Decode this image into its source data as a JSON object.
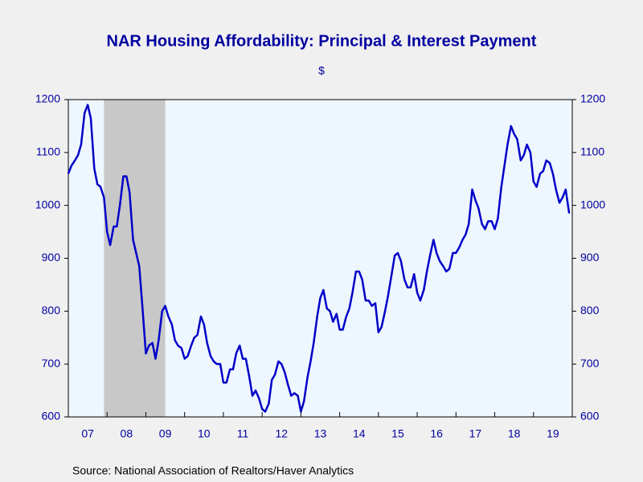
{
  "chart_data": {
    "type": "line",
    "title": "NAR Housing Affordability: Principal & Interest Payment",
    "subtitle": "$",
    "source": "Source:  National Association of Realtors/Haver Analytics",
    "x": [
      2007.0,
      2007.08,
      2007.17,
      2007.25,
      2007.33,
      2007.42,
      2007.5,
      2007.58,
      2007.67,
      2007.75,
      2007.83,
      2007.92,
      2008.0,
      2008.08,
      2008.17,
      2008.25,
      2008.33,
      2008.42,
      2008.5,
      2008.58,
      2008.67,
      2008.75,
      2008.83,
      2008.92,
      2009.0,
      2009.08,
      2009.17,
      2009.25,
      2009.33,
      2009.42,
      2009.5,
      2009.58,
      2009.67,
      2009.75,
      2009.83,
      2009.92,
      2010.0,
      2010.08,
      2010.17,
      2010.25,
      2010.33,
      2010.42,
      2010.5,
      2010.58,
      2010.67,
      2010.75,
      2010.83,
      2010.92,
      2011.0,
      2011.08,
      2011.17,
      2011.25,
      2011.33,
      2011.42,
      2011.5,
      2011.58,
      2011.67,
      2011.75,
      2011.83,
      2011.92,
      2012.0,
      2012.08,
      2012.17,
      2012.25,
      2012.33,
      2012.42,
      2012.5,
      2012.58,
      2012.67,
      2012.75,
      2012.83,
      2012.92,
      2013.0,
      2013.08,
      2013.17,
      2013.25,
      2013.33,
      2013.42,
      2013.5,
      2013.58,
      2013.67,
      2013.75,
      2013.83,
      2013.92,
      2014.0,
      2014.08,
      2014.17,
      2014.25,
      2014.33,
      2014.42,
      2014.5,
      2014.58,
      2014.67,
      2014.75,
      2014.83,
      2014.92,
      2015.0,
      2015.08,
      2015.17,
      2015.25,
      2015.33,
      2015.42,
      2015.5,
      2015.58,
      2015.67,
      2015.75,
      2015.83,
      2015.92,
      2016.0,
      2016.08,
      2016.17,
      2016.25,
      2016.33,
      2016.42,
      2016.5,
      2016.58,
      2016.67,
      2016.75,
      2016.83,
      2016.92,
      2017.0,
      2017.08,
      2017.17,
      2017.25,
      2017.33,
      2017.42,
      2017.5,
      2017.58,
      2017.67,
      2017.75,
      2017.83,
      2017.92,
      2018.0,
      2018.08,
      2018.17,
      2018.25,
      2018.33,
      2018.42,
      2018.5,
      2018.58,
      2018.67,
      2018.75,
      2018.83,
      2018.92,
      2019.0,
      2019.08,
      2019.17,
      2019.25,
      2019.33,
      2019.42,
      2019.5,
      2019.58,
      2019.67,
      2019.75,
      2019.83,
      2019.92
    ],
    "series": [
      {
        "name": "Principal & Interest Payment",
        "color": "#0000c8",
        "values": [
          1060,
          1075,
          1085,
          1095,
          1115,
          1175,
          1190,
          1165,
          1070,
          1040,
          1035,
          1015,
          950,
          925,
          960,
          960,
          1000,
          1055,
          1055,
          1025,
          935,
          910,
          885,
          800,
          720,
          735,
          740,
          710,
          745,
          800,
          810,
          790,
          775,
          745,
          735,
          730,
          710,
          715,
          735,
          750,
          755,
          790,
          775,
          740,
          715,
          705,
          700,
          700,
          665,
          665,
          690,
          690,
          720,
          735,
          710,
          710,
          675,
          640,
          650,
          635,
          615,
          610,
          625,
          670,
          680,
          705,
          700,
          685,
          660,
          640,
          645,
          640,
          610,
          630,
          675,
          705,
          740,
          790,
          825,
          840,
          805,
          800,
          780,
          795,
          765,
          765,
          790,
          805,
          835,
          875,
          875,
          860,
          820,
          820,
          810,
          815,
          760,
          770,
          800,
          830,
          865,
          905,
          910,
          895,
          860,
          845,
          845,
          870,
          835,
          820,
          840,
          875,
          905,
          935,
          910,
          895,
          885,
          875,
          880,
          910,
          910,
          920,
          935,
          945,
          965,
          1030,
          1010,
          995,
          965,
          955,
          970,
          970,
          955,
          975,
          1035,
          1075,
          1115,
          1150,
          1135,
          1125,
          1085,
          1095,
          1115,
          1100,
          1045,
          1035,
          1060,
          1065,
          1085,
          1080,
          1060,
          1030,
          1005,
          1015,
          1030,
          985
        ]
      }
    ],
    "recession": [
      2007.92,
      2009.5
    ],
    "xlim": [
      2007,
      2020
    ],
    "xticks": [
      2007,
      2008,
      2009,
      2010,
      2011,
      2012,
      2013,
      2014,
      2015,
      2016,
      2017,
      2018,
      2019,
      2020
    ],
    "xtick_labels": [
      {
        "value": 2007.5,
        "label": "07"
      },
      {
        "value": 2008.5,
        "label": "08"
      },
      {
        "value": 2009.5,
        "label": "09"
      },
      {
        "value": 2010.5,
        "label": "10"
      },
      {
        "value": 2011.5,
        "label": "11"
      },
      {
        "value": 2012.5,
        "label": "12"
      },
      {
        "value": 2013.5,
        "label": "13"
      },
      {
        "value": 2014.5,
        "label": "14"
      },
      {
        "value": 2015.5,
        "label": "15"
      },
      {
        "value": 2016.5,
        "label": "16"
      },
      {
        "value": 2017.5,
        "label": "17"
      },
      {
        "value": 2018.5,
        "label": "18"
      },
      {
        "value": 2019.5,
        "label": "19"
      }
    ],
    "ylim": [
      600,
      1200
    ],
    "yticks": [
      600,
      700,
      800,
      900,
      1000,
      1100,
      1200
    ],
    "grid": false
  }
}
